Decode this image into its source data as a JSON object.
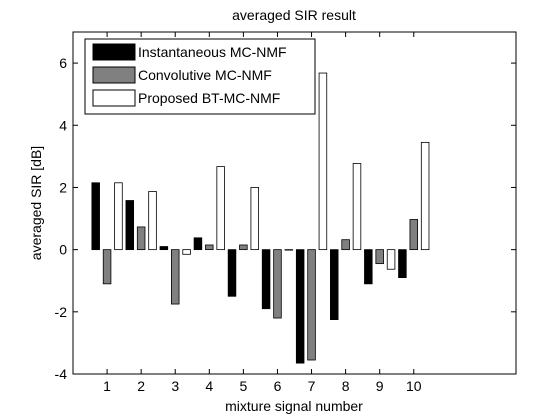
{
  "chart_data": {
    "type": "bar",
    "title": "averaged SIR result",
    "xlabel": "mixture signal number",
    "ylabel": "averaged SIR [dB]",
    "categories": [
      "1",
      "2",
      "3",
      "4",
      "5",
      "6",
      "7",
      "8",
      "9",
      "10"
    ],
    "xlim": [
      0,
      13
    ],
    "ylim": [
      -4,
      7
    ],
    "yticks": [
      -4,
      -2,
      0,
      2,
      4,
      6
    ],
    "grid": false,
    "legend_position": "top-left",
    "series": [
      {
        "name": "Instantaneous MC-NMF",
        "color": "#000000",
        "values": [
          2.15,
          1.58,
          0.1,
          0.38,
          -1.5,
          -1.9,
          -3.65,
          -2.25,
          -1.1,
          -0.9
        ]
      },
      {
        "name": "Convolutive MC-NMF",
        "color": "#808080",
        "values": [
          -1.1,
          0.73,
          -1.75,
          0.15,
          0.15,
          -2.2,
          -3.55,
          0.32,
          -0.45,
          0.97
        ]
      },
      {
        "name": "Proposed BT-MC-NMF",
        "color": "#ffffff",
        "values": [
          2.15,
          1.87,
          -0.15,
          2.67,
          2.0,
          0.0,
          5.68,
          2.77,
          -0.63,
          3.45
        ]
      }
    ]
  }
}
